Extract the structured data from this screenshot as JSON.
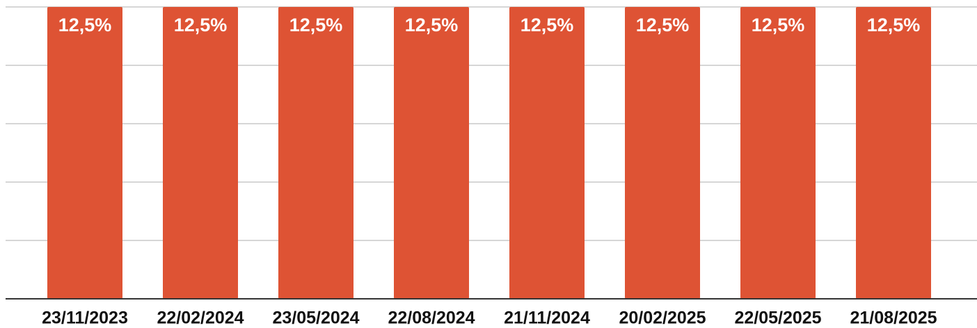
{
  "chart_data": {
    "type": "bar",
    "categories": [
      "23/11/2023",
      "22/02/2024",
      "23/05/2024",
      "22/08/2024",
      "21/11/2024",
      "20/02/2025",
      "22/05/2025",
      "21/08/2025"
    ],
    "values": [
      12.5,
      12.5,
      12.5,
      12.5,
      12.5,
      12.5,
      12.5,
      12.5
    ],
    "value_labels": [
      "12,5%",
      "12,5%",
      "12,5%",
      "12,5%",
      "12,5%",
      "12,5%",
      "12,5%",
      "12,5%"
    ],
    "color": "#de5334",
    "ylim": [
      0,
      12.5
    ],
    "yticks": [
      0,
      2.5,
      5,
      7.5,
      10,
      12.5
    ],
    "grid": true
  }
}
